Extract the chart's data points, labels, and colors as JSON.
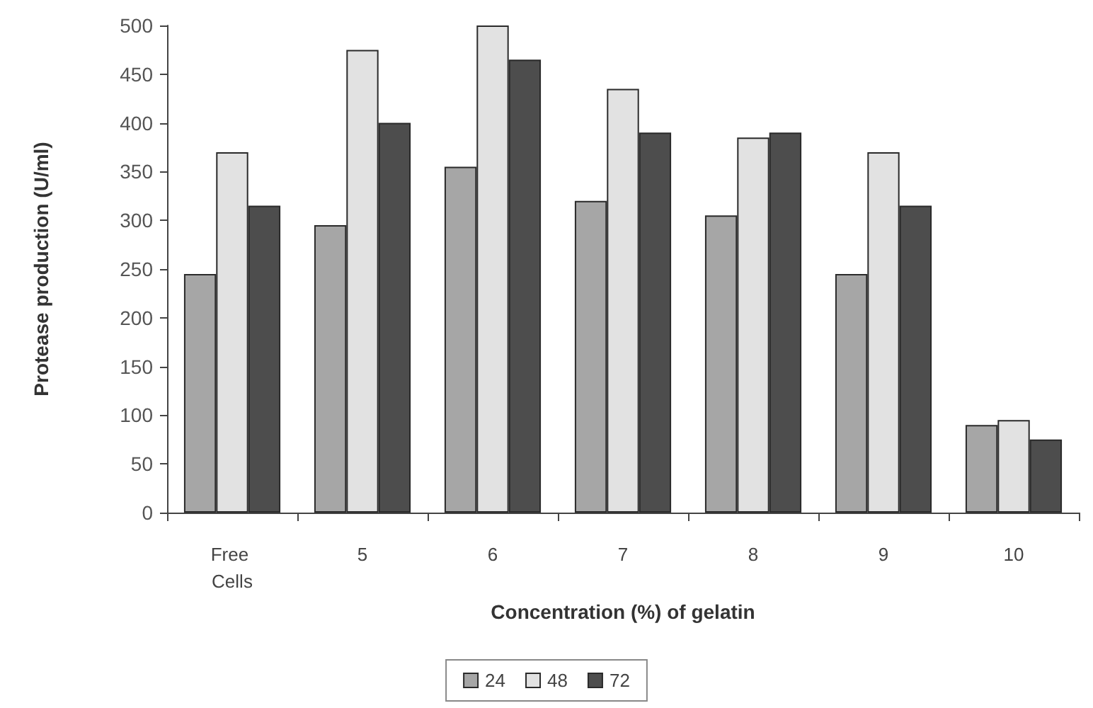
{
  "chart_data": {
    "type": "bar",
    "xlabel": "Concentration (%) of gelatin",
    "ylabel": "Protease production (U/ml)",
    "categories": [
      "Free Cells",
      "5",
      "6",
      "7",
      "8",
      "9",
      "10"
    ],
    "series": [
      {
        "name": "24",
        "color": "#a6a6a6",
        "values": [
          245,
          295,
          355,
          320,
          305,
          245,
          90
        ]
      },
      {
        "name": "48",
        "color": "#e2e2e2",
        "values": [
          370,
          475,
          500,
          435,
          385,
          370,
          95
        ]
      },
      {
        "name": "72",
        "color": "#4d4d4d",
        "values": [
          315,
          400,
          465,
          390,
          390,
          315,
          75
        ]
      }
    ],
    "ylim": [
      0,
      500
    ],
    "yticks": [
      0,
      50,
      100,
      150,
      200,
      250,
      300,
      350,
      400,
      450,
      500
    ],
    "grid": false,
    "legend": "bottom"
  }
}
